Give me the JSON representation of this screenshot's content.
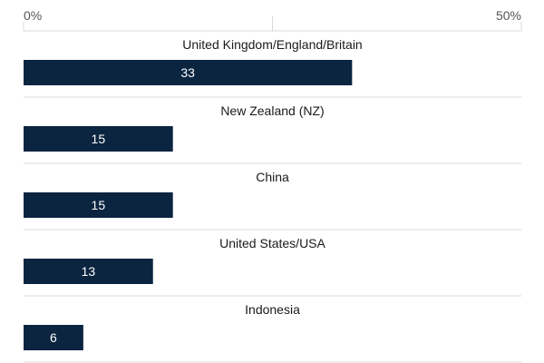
{
  "chart_data": {
    "type": "bar",
    "orientation": "horizontal",
    "title": "",
    "xlabel": "",
    "ylabel": "",
    "xlim": [
      0,
      50
    ],
    "ticks": [
      {
        "value": 0,
        "label": "0%"
      },
      {
        "value": 50,
        "label": "50%"
      }
    ],
    "grid": true,
    "colors": {
      "bar": "#0b2440",
      "value_text": "#ffffff",
      "grid": "#d9d9d9"
    },
    "categories": [
      "United Kingdom/England/Britain",
      "New Zealand (NZ)",
      "China",
      "United States/USA",
      "Indonesia"
    ],
    "values": [
      33,
      15,
      15,
      13,
      6
    ],
    "value_labels": [
      "33",
      "15",
      "15",
      "13",
      "6"
    ]
  }
}
